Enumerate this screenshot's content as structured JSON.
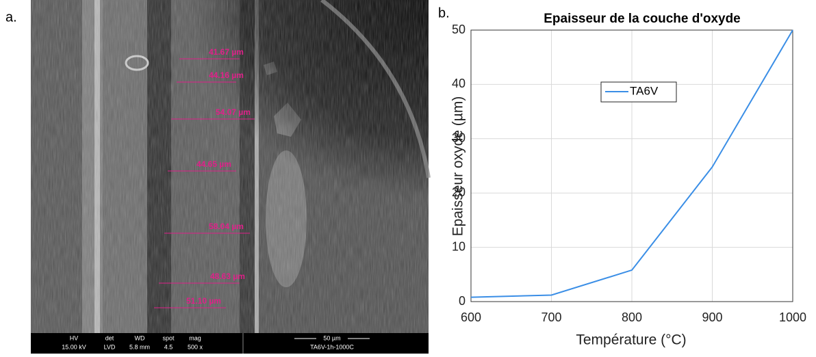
{
  "panels": {
    "a": "a.",
    "b": "b."
  },
  "sem_image": {
    "measurements": [
      "41.67 µm",
      "44.16 µm",
      "54.07 µm",
      "44.65 µm",
      "58.04 µm",
      "48.63 µm",
      "51.10 µm"
    ],
    "info_bar": {
      "hv_label": "HV",
      "hv": "15.00 kV",
      "det_label": "det",
      "det": "LVD",
      "wd_label": "WD",
      "wd": "5.8 mm",
      "spot_label": "spot",
      "spot": "4.5",
      "mag_label": "mag",
      "mag": "500 x",
      "scale": "50 µm",
      "sample": "TA6V-1h-1000C"
    }
  },
  "chart_data": {
    "type": "line",
    "title": "Epaisseur de la couche d'oxyde",
    "x_label": "Température (°C)",
    "y_label": "Epaisseur oxyde (µm)",
    "x": [
      600,
      700,
      800,
      900,
      1000
    ],
    "series": [
      {
        "name": "TA6V",
        "color": "#3a8ee6",
        "values": [
          0.8,
          1.2,
          5.8,
          24.8,
          50
        ]
      }
    ],
    "xlim": [
      600,
      1000
    ],
    "xticks": [
      600,
      700,
      800,
      900,
      1000
    ],
    "ylim": [
      0,
      50
    ],
    "yticks": [
      0,
      10,
      20,
      30,
      40,
      50
    ],
    "grid": true,
    "legend": "north"
  }
}
